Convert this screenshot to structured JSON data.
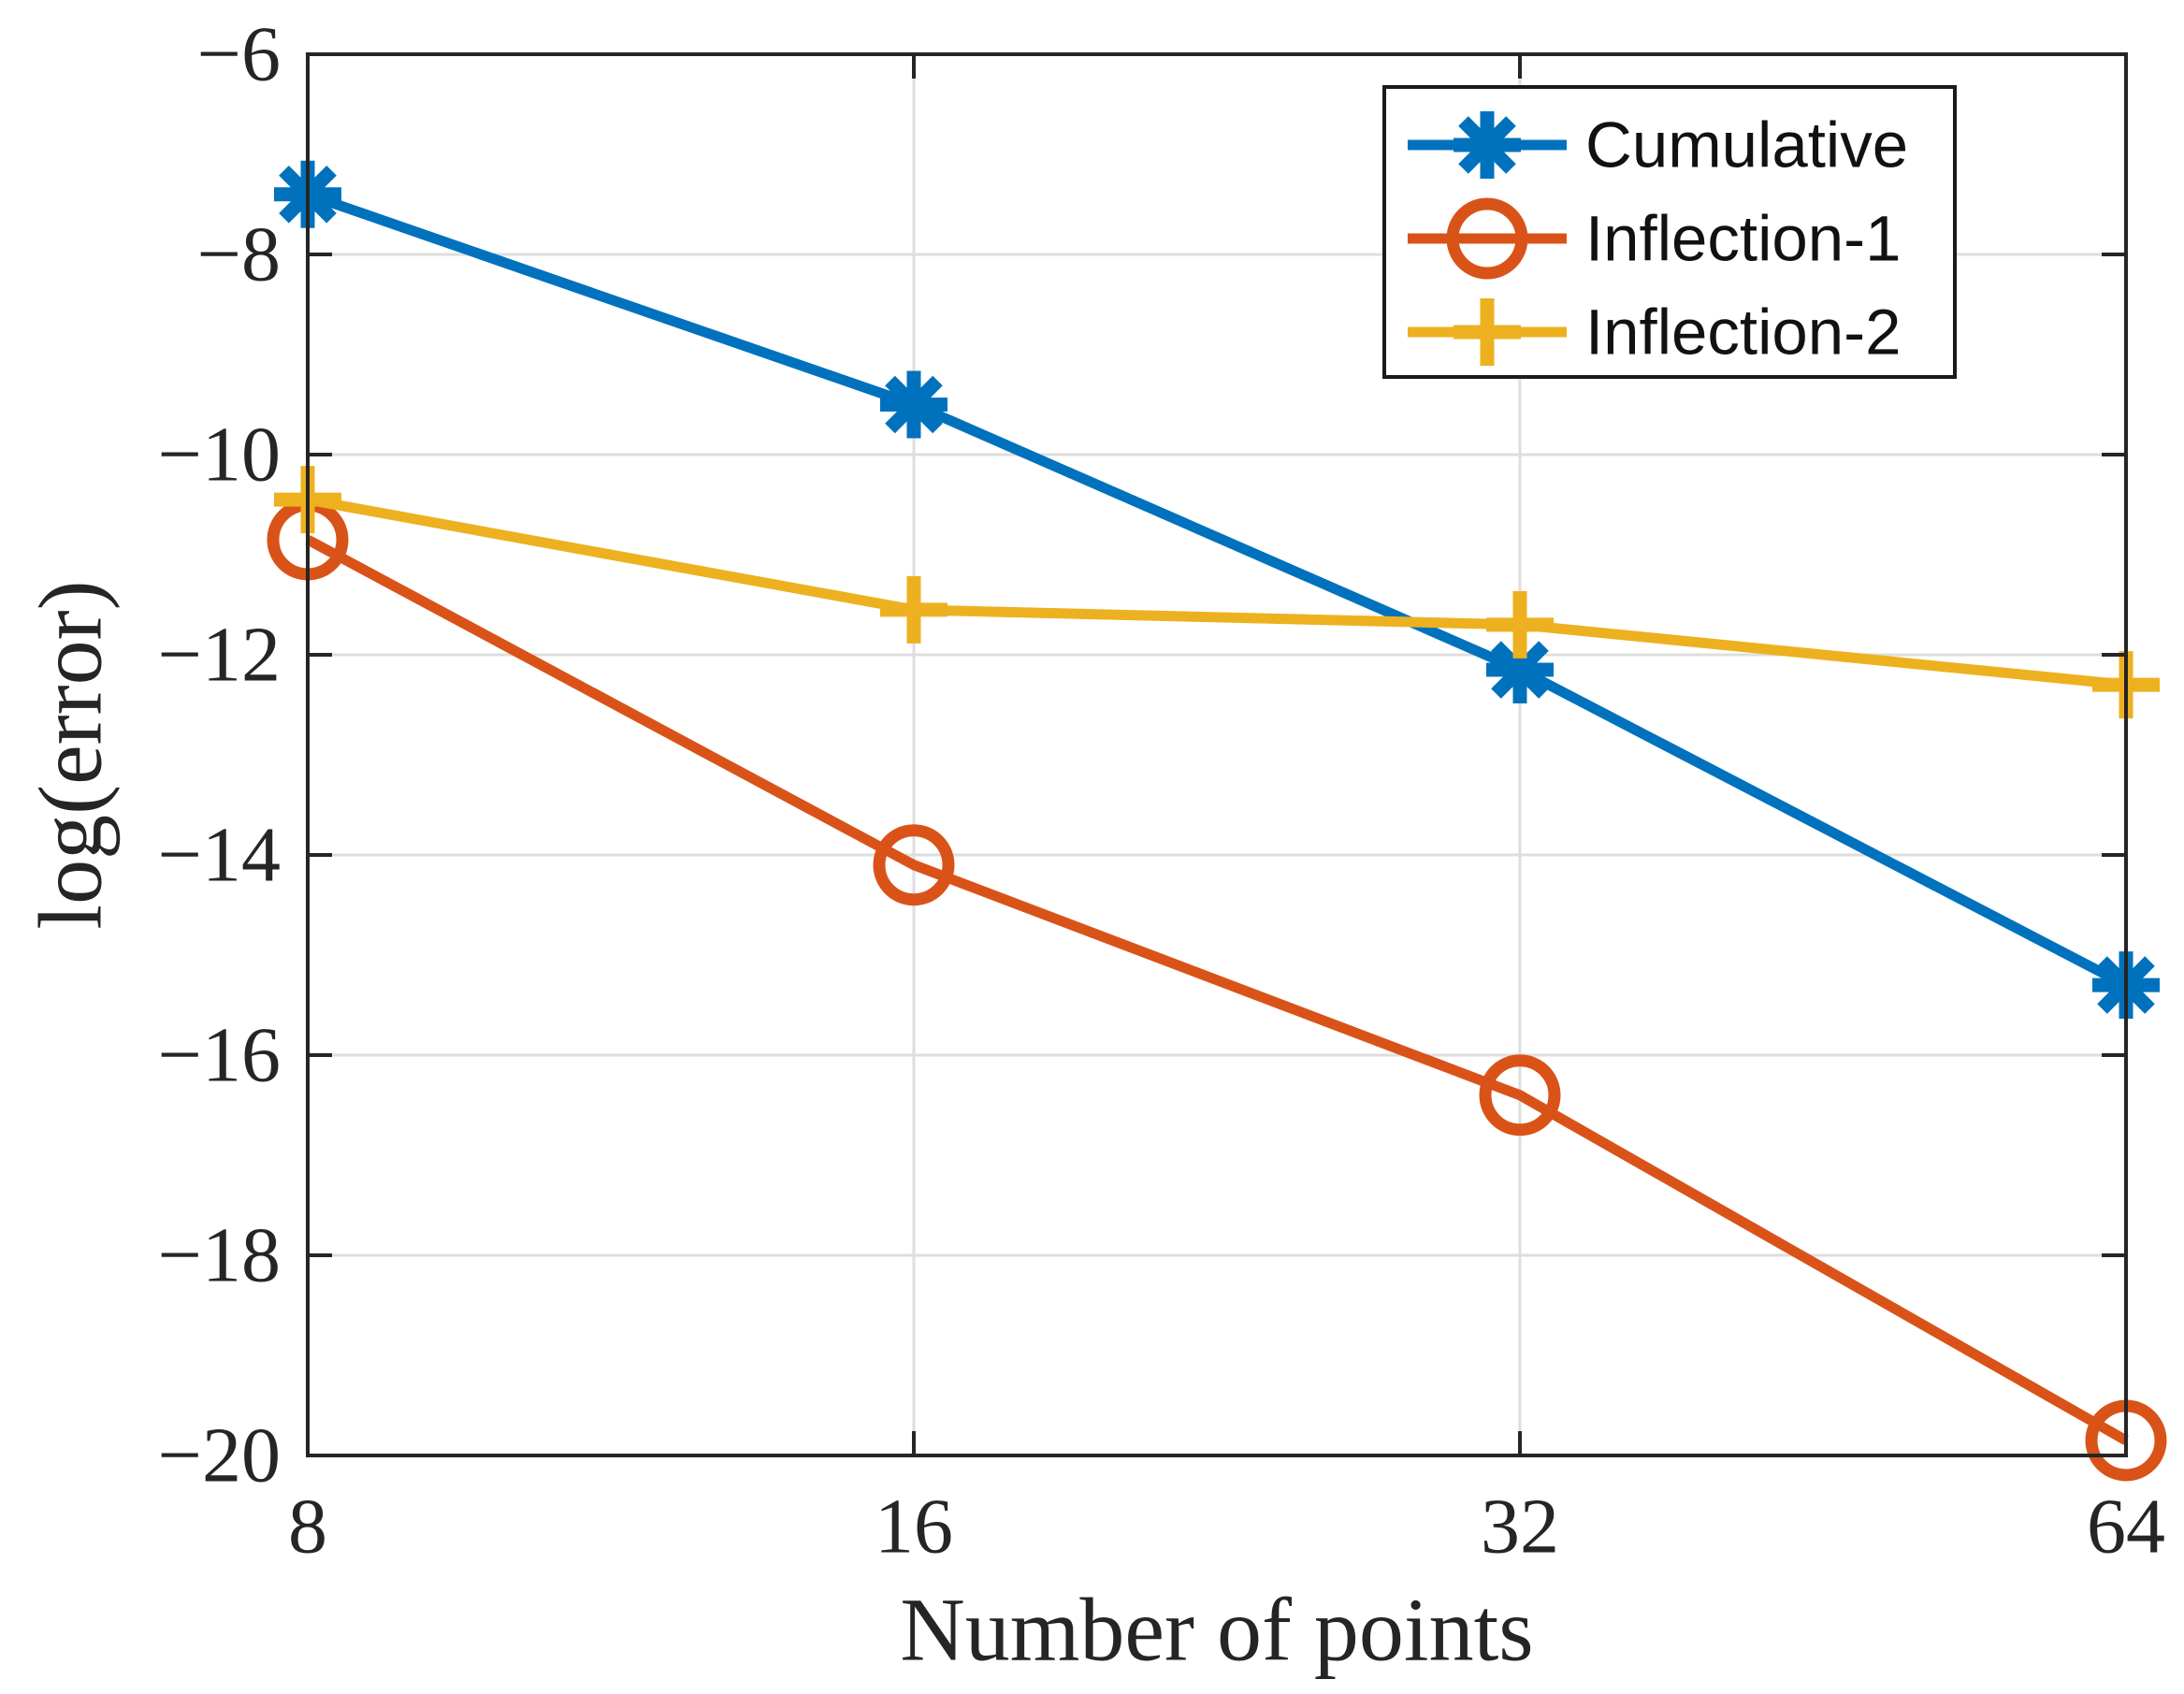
{
  "figure": {
    "background": "#ffffff",
    "axis_color": "#252525",
    "grid_color": "#dedede",
    "tick_label_color": "#252525"
  },
  "chart_data": {
    "type": "line",
    "x_scale": "log2",
    "x": [
      8,
      16,
      32,
      64
    ],
    "series": [
      {
        "name": "Cumulative",
        "color": "#0072BD",
        "marker": "asterisk",
        "values": [
          -7.4,
          -9.5,
          -12.15,
          -15.3
        ]
      },
      {
        "name": "Inflection-1",
        "color": "#D95319",
        "marker": "circle",
        "values": [
          -10.85,
          -14.1,
          -16.4,
          -19.85
        ]
      },
      {
        "name": "Inflection-2",
        "color": "#EDB120",
        "marker": "plus",
        "values": [
          -10.45,
          -11.55,
          -11.7,
          -12.3
        ]
      }
    ],
    "title": "",
    "xlabel": "Number of points",
    "ylabel": "log(error)",
    "xlim": [
      8,
      64
    ],
    "ylim": [
      -20,
      -6
    ],
    "xticks": [
      8,
      16,
      32,
      64
    ],
    "yticks": [
      -20,
      -18,
      -16,
      -14,
      -12,
      -10,
      -8,
      -6
    ],
    "grid": true,
    "legend_position": "northeast"
  }
}
